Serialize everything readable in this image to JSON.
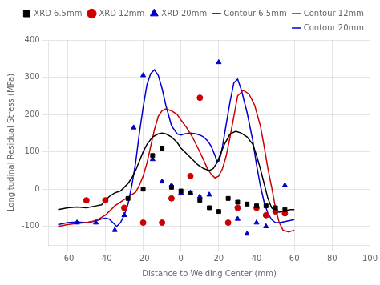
{
  "chart_data": {
    "type": "scatter",
    "xlabel": "Distance to Welding Center (mm)",
    "ylabel": "Longitudinal Residual Stress (MPa)",
    "xlim": [
      -70,
      100
    ],
    "ylim": [
      -150,
      400
    ],
    "xticks": [
      -60,
      -40,
      -20,
      0,
      20,
      40,
      60,
      80,
      100
    ],
    "yticks": [
      -100,
      0,
      100,
      200,
      300,
      400
    ],
    "grid": true,
    "legend": "upper right",
    "series": [
      {
        "name": "XRD 6.5mm",
        "type": "scatter",
        "marker": "square",
        "color": "#000000",
        "x": [
          -28,
          -20,
          -15,
          -10,
          -5,
          0,
          5,
          10,
          15,
          20,
          25,
          30,
          35,
          40,
          45,
          50,
          55
        ],
        "values": [
          -25,
          0,
          90,
          110,
          5,
          -5,
          -10,
          -30,
          -50,
          -60,
          -25,
          -35,
          -40,
          -45,
          -45,
          -50,
          -55
        ]
      },
      {
        "name": "XRD 12mm",
        "type": "scatter",
        "marker": "circle",
        "color": "#cc0000",
        "x": [
          -50,
          -40,
          -30,
          -20,
          -10,
          -5,
          5,
          10,
          25,
          30,
          40,
          45,
          50,
          55
        ],
        "values": [
          -30,
          -30,
          -50,
          -90,
          -90,
          -25,
          35,
          245,
          -90,
          -50,
          -50,
          -70,
          -60,
          -65
        ]
      },
      {
        "name": "XRD 20mm",
        "type": "scatter",
        "marker": "triangle",
        "color": "#0000cc",
        "x": [
          -55,
          -45,
          -35,
          -30,
          -25,
          -20,
          -15,
          -10,
          -5,
          0,
          5,
          10,
          15,
          20,
          30,
          35,
          40,
          45,
          55
        ],
        "values": [
          -90,
          -90,
          -110,
          -70,
          165,
          305,
          80,
          20,
          10,
          -10,
          -10,
          -20,
          -15,
          340,
          -80,
          -120,
          -90,
          -100,
          10
        ]
      },
      {
        "name": "Contour 6.5mm",
        "type": "line",
        "line_style": "solid",
        "color": "#000000",
        "x": [
          -65,
          -60,
          -55,
          -50,
          -45,
          -42,
          -40,
          -38,
          -35,
          -32,
          -30,
          -28,
          -26,
          -24,
          -22,
          -20,
          -18,
          -15,
          -12,
          -10,
          -8,
          -5,
          -2,
          0,
          3,
          6,
          9,
          12,
          15,
          17,
          19,
          21,
          23,
          26,
          29,
          32,
          35,
          38,
          40,
          42,
          44,
          46,
          48,
          50,
          52,
          54,
          56,
          58,
          60
        ],
        "values": [
          -55,
          -50,
          -48,
          -50,
          -45,
          -42,
          -30,
          -20,
          -10,
          -5,
          5,
          15,
          30,
          50,
          75,
          100,
          120,
          140,
          148,
          150,
          148,
          140,
          125,
          110,
          95,
          80,
          65,
          55,
          50,
          55,
          70,
          95,
          120,
          148,
          155,
          150,
          140,
          120,
          90,
          55,
          15,
          -25,
          -50,
          -60,
          -62,
          -60,
          -57,
          -55,
          -55
        ]
      },
      {
        "name": "Contour 12mm",
        "type": "line",
        "line_style": "solid",
        "color": "#cc0000",
        "x": [
          -65,
          -60,
          -55,
          -50,
          -45,
          -40,
          -38,
          -35,
          -32,
          -30,
          -28,
          -26,
          -24,
          -22,
          -20,
          -18,
          -16,
          -14,
          -12,
          -10,
          -8,
          -5,
          -2,
          0,
          3,
          6,
          9,
          12,
          14,
          16,
          18,
          20,
          22,
          24,
          26,
          28,
          30,
          33,
          36,
          39,
          42,
          44,
          46,
          48,
          50,
          52,
          54,
          57,
          60
        ],
        "values": [
          -100,
          -95,
          -92,
          -90,
          -85,
          -70,
          -60,
          -45,
          -35,
          -28,
          -22,
          -15,
          -8,
          10,
          35,
          70,
          115,
          160,
          195,
          210,
          215,
          210,
          200,
          185,
          165,
          140,
          110,
          78,
          55,
          40,
          30,
          35,
          55,
          90,
          140,
          195,
          250,
          265,
          255,
          225,
          170,
          115,
          55,
          5,
          -50,
          -90,
          -110,
          -115,
          -110
        ]
      },
      {
        "name": "Contour 20mm",
        "type": "line",
        "line_style": "solid",
        "color": "#0000cc",
        "x": [
          -65,
          -60,
          -55,
          -50,
          -45,
          -42,
          -40,
          -38,
          -36,
          -34,
          -32,
          -30,
          -28,
          -26,
          -24,
          -22,
          -20,
          -18,
          -16,
          -14,
          -12,
          -10,
          -8,
          -5,
          -2,
          0,
          2,
          5,
          8,
          10,
          12,
          14,
          16,
          18,
          19,
          20,
          21,
          22,
          24,
          26,
          28,
          30,
          32,
          35,
          38,
          40,
          42,
          44,
          46,
          48,
          50,
          52,
          54,
          57,
          60
        ],
        "values": [
          -95,
          -90,
          -88,
          -90,
          -85,
          -80,
          -78,
          -80,
          -90,
          -100,
          -90,
          -70,
          -40,
          10,
          70,
          150,
          220,
          280,
          310,
          320,
          305,
          270,
          225,
          170,
          148,
          145,
          148,
          150,
          148,
          145,
          140,
          130,
          115,
          90,
          75,
          75,
          90,
          115,
          175,
          235,
          285,
          295,
          265,
          205,
          130,
          65,
          10,
          -35,
          -65,
          -82,
          -90,
          -90,
          -88,
          -85,
          -82
        ]
      }
    ]
  }
}
